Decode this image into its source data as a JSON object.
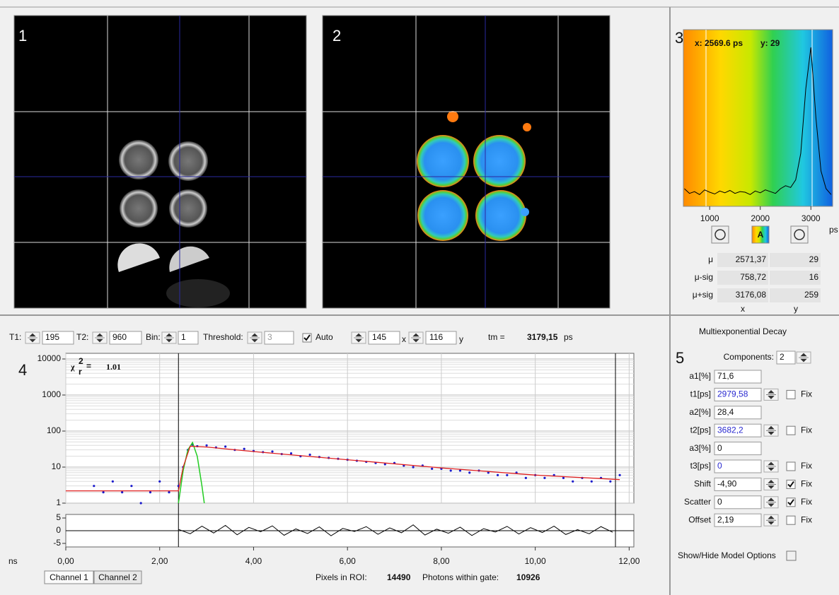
{
  "panels": {
    "image1": {
      "label": "1"
    },
    "image2": {
      "label": "2"
    },
    "histogram": {
      "label": "3",
      "cursor_x": "x: 2569.6 ps",
      "cursor_y": "y: 29",
      "x": [
        500,
        600,
        700,
        800,
        900,
        1000,
        1100,
        1200,
        1300,
        1400,
        1500,
        1600,
        1700,
        1800,
        1900,
        2000,
        2100,
        2200,
        2300,
        2400,
        2500,
        2600,
        2700,
        2800,
        2900,
        3000,
        3100,
        3200,
        3300,
        3400
      ],
      "values": [
        30,
        22,
        25,
        20,
        28,
        24,
        21,
        26,
        23,
        27,
        22,
        25,
        24,
        20,
        26,
        23,
        28,
        25,
        22,
        30,
        35,
        32,
        45,
        90,
        200,
        270,
        150,
        60,
        30,
        20
      ],
      "xlim": [
        480,
        3430
      ],
      "ylim": [
        0,
        300
      ],
      "xticks": [
        1000,
        2000,
        3000
      ],
      "x_unit": "ps",
      "auto_button": "A",
      "stats": {
        "rows": [
          [
            "μ",
            "2571,37",
            "29"
          ],
          [
            "μ-sig",
            "758,72",
            "16"
          ],
          [
            "μ+sig",
            "3176,08",
            "259"
          ]
        ],
        "columns": [
          "x",
          "y"
        ]
      }
    },
    "decay": {
      "label": "4",
      "toolbar": {
        "fields": [
          {
            "label": "T1:",
            "value": "195"
          },
          {
            "label": "T2:",
            "value": "960"
          },
          {
            "label": "Bin:",
            "value": "1"
          },
          {
            "label": "Threshold:",
            "value": "3"
          }
        ],
        "auto_label": "Auto",
        "auto": true,
        "pos_x": "145",
        "pos_x_label": "x",
        "pos_y": "116",
        "pos_y_label": "y",
        "tm_label": "tm =",
        "tm_value": "3179,15",
        "tm_unit": "ps"
      },
      "chi_symbol": "χ",
      "chi_sup": "2",
      "chi_sub": "r",
      "chi_eq": "=",
      "chi_value": "1.01",
      "log_y": true,
      "grid": true,
      "x_unit": "ns",
      "xlim": [
        0,
        12.1
      ],
      "ylim": [
        1,
        10000
      ],
      "xticks": [
        {
          "value": 0,
          "label": "0,00"
        },
        {
          "value": 2,
          "label": "2,00"
        },
        {
          "value": 4,
          "label": "4,00"
        },
        {
          "value": 6,
          "label": "6,00"
        },
        {
          "value": 8,
          "label": "8,00"
        },
        {
          "value": 10,
          "label": "10,00"
        },
        {
          "value": 12,
          "label": "12,00"
        }
      ],
      "yticks": [
        1,
        10,
        100,
        1000,
        10000
      ],
      "data": {
        "color": "#1a1acc",
        "x": [
          0.6,
          0.8,
          1.0,
          1.2,
          1.4,
          1.6,
          1.8,
          2.0,
          2.2,
          2.4,
          2.5,
          2.6,
          2.7,
          2.8,
          3.0,
          3.2,
          3.4,
          3.6,
          3.8,
          4.0,
          4.2,
          4.4,
          4.6,
          4.8,
          5.0,
          5.2,
          5.4,
          5.6,
          5.8,
          6.0,
          6.2,
          6.4,
          6.6,
          6.8,
          7.0,
          7.2,
          7.4,
          7.6,
          7.8,
          8.0,
          8.2,
          8.4,
          8.6,
          8.8,
          9.0,
          9.2,
          9.4,
          9.6,
          9.8,
          10.0,
          10.2,
          10.4,
          10.6,
          10.8,
          11.0,
          11.2,
          11.4,
          11.6,
          11.8
        ],
        "values": [
          3,
          2,
          4,
          2,
          3,
          1,
          2,
          4,
          2,
          3,
          10,
          30,
          42,
          38,
          40,
          35,
          37,
          30,
          32,
          28,
          26,
          27,
          23,
          24,
          20,
          22,
          19,
          18,
          17,
          16,
          15,
          14,
          13,
          12,
          13,
          11,
          10,
          11,
          9,
          9,
          8,
          8,
          7,
          8,
          7,
          6,
          6,
          7,
          5,
          6,
          5,
          6,
          5,
          4,
          5,
          4,
          5,
          4,
          6
        ]
      },
      "fit": {
        "color": "#e02020",
        "x": [
          0,
          2.4,
          2.5,
          2.65,
          3,
          4,
          6,
          8,
          10,
          11.8
        ],
        "values": [
          2.19,
          2.19,
          10,
          38,
          36,
          27,
          16,
          9.5,
          6,
          4.5
        ]
      },
      "irf": {
        "color": "#22cc22",
        "x": [
          2.4,
          2.5,
          2.6,
          2.7,
          2.8,
          2.9,
          2.95
        ],
        "values": [
          1,
          8,
          30,
          48,
          20,
          3,
          1
        ]
      },
      "residuals": {
        "ylim": [
          -6.4,
          6.4
        ],
        "yticks": [
          -5,
          0,
          5
        ],
        "x": [
          2.4,
          2.65,
          2.9,
          3.15,
          3.4,
          3.65,
          3.9,
          4.15,
          4.4,
          4.65,
          4.9,
          5.15,
          5.4,
          5.65,
          5.9,
          6.15,
          6.4,
          6.65,
          6.9,
          7.15,
          7.4,
          7.65,
          7.9,
          8.15,
          8.4,
          8.65,
          8.9,
          9.15,
          9.4,
          9.65,
          9.9,
          10.15,
          10.4,
          10.65,
          10.9,
          11.15,
          11.4,
          11.65
        ],
        "values": [
          0.5,
          -1.2,
          1.8,
          -0.9,
          2.1,
          -1.6,
          1.3,
          -0.4,
          1.9,
          -1.8,
          0.7,
          -1.1,
          1.5,
          -2.0,
          0.9,
          -0.3,
          1.6,
          -1.4,
          1.1,
          -0.8,
          2.3,
          -1.7,
          0.6,
          -1.0,
          1.4,
          -1.9,
          0.8,
          -0.5,
          1.7,
          -1.3,
          1.2,
          -0.7,
          1.8,
          -1.5,
          0.4,
          -1.2,
          1.6,
          -0.6
        ]
      },
      "tabs": [
        "Channel 1",
        "Channel 2"
      ],
      "pixels_label": "Pixels in ROI:",
      "pixels_value": "14490",
      "photons_label": "Photons within gate:",
      "photons_value": "10926"
    },
    "model": {
      "label": "5",
      "title": "Multiexponential Decay",
      "components_label": "Components:",
      "components": "2",
      "rows": [
        {
          "name": "a1[%]",
          "value": "71,6"
        },
        {
          "name": "t1[ps]",
          "value": "2979,58",
          "value_color": "#2a2ad0",
          "fix": false,
          "fix_label": "Fix"
        },
        {
          "name": "a2[%]",
          "value": "28,4"
        },
        {
          "name": "t2[ps]",
          "value": "3682,2",
          "value_color": "#2a2ad0",
          "fix": false,
          "fix_label": "Fix"
        },
        {
          "name": "a3[%]",
          "value": "0"
        },
        {
          "name": "t3[ps]",
          "value": "0",
          "value_color": "#2a2ad0",
          "fix": false,
          "fix_label": "Fix"
        },
        {
          "name": "Shift",
          "value": "-4,90",
          "fix": true,
          "fix_label": "Fix"
        },
        {
          "name": "Scatter",
          "value": "0",
          "fix": true,
          "fix_label": "Fix"
        },
        {
          "name": "Offset",
          "value": "2,19",
          "fix": false,
          "fix_label": "Fix"
        }
      ],
      "show_hide": "Show/Hide Model Options"
    }
  }
}
